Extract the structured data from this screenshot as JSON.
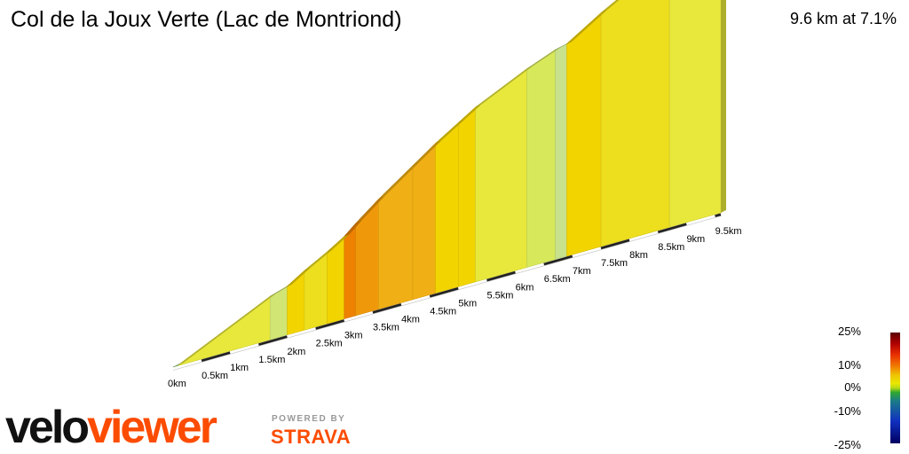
{
  "header": {
    "title": "Col de la Joux Verte (Lac de Montriond)",
    "summary": "9.6 km at 7.1%"
  },
  "chart_data": {
    "type": "area",
    "title": "Col de la Joux Verte (Lac de Montriond)",
    "x_unit": "km",
    "total_distance_km": 9.6,
    "average_gradient_pct": 7.1,
    "x_tick_labels": [
      "0km",
      "0.5km",
      "1km",
      "1.5km",
      "2km",
      "2.5km",
      "3km",
      "3.5km",
      "4km",
      "4.5km",
      "5km",
      "5.5km",
      "6km",
      "6.5km",
      "7km",
      "7.5km",
      "8km",
      "8.5km",
      "9km",
      "9.5km"
    ],
    "segments": [
      {
        "start_km": 0.0,
        "end_km": 0.1,
        "gradient_pct": 2
      },
      {
        "start_km": 0.1,
        "end_km": 1.7,
        "gradient_pct": 6
      },
      {
        "start_km": 1.7,
        "end_km": 2.0,
        "gradient_pct": 4
      },
      {
        "start_km": 2.0,
        "end_km": 2.3,
        "gradient_pct": 8
      },
      {
        "start_km": 2.3,
        "end_km": 2.7,
        "gradient_pct": 7
      },
      {
        "start_km": 2.7,
        "end_km": 3.0,
        "gradient_pct": 8
      },
      {
        "start_km": 3.0,
        "end_km": 3.2,
        "gradient_pct": 11
      },
      {
        "start_km": 3.2,
        "end_km": 3.6,
        "gradient_pct": 10
      },
      {
        "start_km": 3.6,
        "end_km": 4.2,
        "gradient_pct": 9
      },
      {
        "start_km": 4.2,
        "end_km": 4.6,
        "gradient_pct": 9
      },
      {
        "start_km": 4.6,
        "end_km": 5.0,
        "gradient_pct": 8
      },
      {
        "start_km": 5.0,
        "end_km": 5.3,
        "gradient_pct": 8
      },
      {
        "start_km": 5.3,
        "end_km": 6.2,
        "gradient_pct": 6
      },
      {
        "start_km": 6.2,
        "end_km": 6.7,
        "gradient_pct": 5
      },
      {
        "start_km": 6.7,
        "end_km": 6.9,
        "gradient_pct": 3
      },
      {
        "start_km": 6.9,
        "end_km": 7.5,
        "gradient_pct": 8
      },
      {
        "start_km": 7.5,
        "end_km": 8.7,
        "gradient_pct": 7
      },
      {
        "start_km": 8.7,
        "end_km": 9.6,
        "gradient_pct": 6
      }
    ]
  },
  "legend": {
    "labels": [
      "25%",
      "10%",
      "0%",
      "-10%",
      "-25%"
    ]
  },
  "colors": {
    "strava_orange": "#fc4c02"
  },
  "brand": {
    "velo": "velo",
    "viewer": "viewer",
    "powered_by": "POWERED BY",
    "strava": "STRAVA"
  }
}
